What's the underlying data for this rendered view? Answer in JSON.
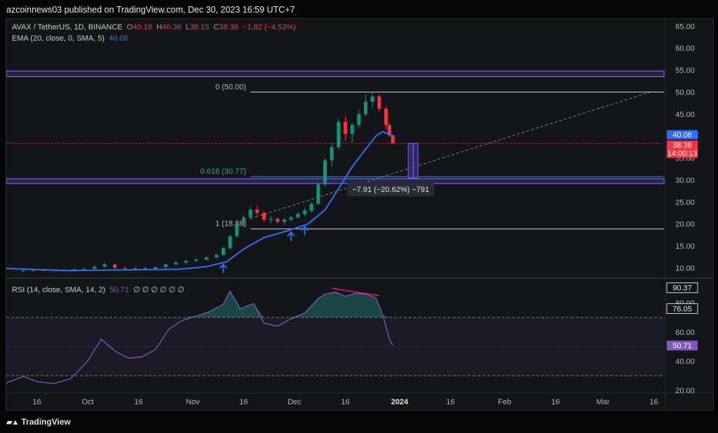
{
  "publisher": "azcoinnews03 published on TradingView.com, Dec 30, 2023 16:59 UTC+7",
  "legend": {
    "symbol": "AVAX / TetherUS, 1D, BINANCE",
    "o_label": "O",
    "o": "40.18",
    "h_label": "H",
    "h": "40.36",
    "l_label": "L",
    "l": "38.15",
    "c_label": "C",
    "c": "38.36",
    "change": "−1.82 (−4.53%)",
    "ema_label": "EMA (20, close, 0, SMA, 5)",
    "ema": "40.06",
    "rsi_label": "RSI (14, close, SMA, 14, 2)",
    "rsi": "50.71",
    "rsi_na": "∅ ∅ ∅ ∅ ∅ ∅"
  },
  "brand": "TradingView",
  "colors": {
    "up": "#089981",
    "down": "#f23645",
    "ema": "#2e6ff2",
    "rsi": "#7e57c2",
    "zone": "#7b5cff",
    "fib": "#26a69a"
  },
  "chart_data": {
    "type": "candlestick",
    "symbol": "AVAX / TetherUS",
    "interval": "1D",
    "price_axis": {
      "ticks": [
        "10.00",
        "15.00",
        "20.00",
        "25.00",
        "30.00",
        "35.00",
        "40.00",
        "45.00",
        "50.00",
        "55.00",
        "60.00",
        "65.00"
      ],
      "range": [
        8,
        66
      ]
    },
    "rsi_axis": {
      "ticks": [
        "20.00",
        "40.00",
        "60.00",
        "80.00"
      ],
      "range": [
        20,
        96
      ],
      "bands": [
        30,
        70
      ]
    },
    "x_ticks": [
      "16",
      "Oct",
      "16",
      "Nov",
      "16",
      "Dec",
      "16",
      "2024",
      "16",
      "Feb",
      "16",
      "Mar",
      "16"
    ],
    "x_tick_dates": [
      "2023-09-16",
      "2023-10-01",
      "2023-10-16",
      "2023-11-01",
      "2023-11-16",
      "2023-12-01",
      "2023-12-16",
      "2024-01-01",
      "2024-01-16",
      "2024-02-01",
      "2024-02-16",
      "2024-03-01",
      "2024-03-16"
    ],
    "date_range": [
      "2023-09-07",
      "2024-03-19"
    ],
    "candles_ohlc": [
      [
        "2023-09-12",
        9.3,
        9.6,
        9.1,
        9.4
      ],
      [
        "2023-09-15",
        9.4,
        9.8,
        9.2,
        9.5
      ],
      [
        "2023-09-18",
        9.5,
        9.8,
        9.3,
        9.4
      ],
      [
        "2023-09-21",
        9.4,
        9.7,
        9.2,
        9.5
      ],
      [
        "2023-09-24",
        9.5,
        9.9,
        9.3,
        9.6
      ],
      [
        "2023-09-27",
        9.6,
        10.0,
        9.4,
        9.7
      ],
      [
        "2023-09-30",
        9.7,
        10.1,
        9.5,
        9.8
      ],
      [
        "2023-10-03",
        9.8,
        10.6,
        9.7,
        10.3
      ],
      [
        "2023-10-06",
        10.3,
        11.2,
        10.1,
        10.8
      ],
      [
        "2023-10-09",
        10.8,
        10.9,
        9.9,
        10.0
      ],
      [
        "2023-10-12",
        10.0,
        10.3,
        9.6,
        9.8
      ],
      [
        "2023-10-15",
        9.8,
        10.1,
        9.5,
        9.9
      ],
      [
        "2023-10-18",
        9.9,
        10.2,
        9.6,
        9.8
      ],
      [
        "2023-10-21",
        9.8,
        10.3,
        9.7,
        10.2
      ],
      [
        "2023-10-24",
        10.2,
        11.0,
        10.0,
        10.8
      ],
      [
        "2023-10-27",
        10.8,
        11.5,
        10.6,
        11.2
      ],
      [
        "2023-10-30",
        11.2,
        11.9,
        11.0,
        11.6
      ],
      [
        "2023-11-02",
        11.6,
        12.2,
        11.3,
        11.9
      ],
      [
        "2023-11-05",
        11.9,
        12.6,
        11.7,
        12.4
      ],
      [
        "2023-11-08",
        12.4,
        13.2,
        12.2,
        13.0
      ],
      [
        "2023-11-10",
        13.0,
        14.8,
        12.8,
        14.5
      ],
      [
        "2023-11-12",
        14.5,
        17.5,
        14.2,
        17.2
      ],
      [
        "2023-11-14",
        17.2,
        20.5,
        16.8,
        20.2
      ],
      [
        "2023-11-16",
        20.2,
        22.0,
        19.5,
        21.5
      ],
      [
        "2023-11-18",
        21.5,
        24.0,
        21.0,
        23.3
      ],
      [
        "2023-11-20",
        23.3,
        24.2,
        21.8,
        22.5
      ],
      [
        "2023-11-22",
        22.5,
        23.0,
        20.5,
        21.0
      ],
      [
        "2023-11-24",
        21.0,
        21.8,
        20.2,
        21.2
      ],
      [
        "2023-11-26",
        21.2,
        21.5,
        20.1,
        20.5
      ],
      [
        "2023-11-28",
        20.5,
        21.4,
        19.8,
        21.0
      ],
      [
        "2023-11-30",
        21.0,
        21.8,
        20.6,
        21.5
      ],
      [
        "2023-12-02",
        21.5,
        22.6,
        21.2,
        22.3
      ],
      [
        "2023-12-04",
        22.3,
        23.5,
        21.8,
        23.0
      ],
      [
        "2023-12-06",
        23.0,
        25.0,
        22.6,
        24.6
      ],
      [
        "2023-12-08",
        24.6,
        29.5,
        24.2,
        29.0
      ],
      [
        "2023-12-10",
        29.0,
        35.0,
        28.5,
        34.5
      ],
      [
        "2023-12-12",
        34.5,
        38.5,
        33.0,
        37.5
      ],
      [
        "2023-12-14",
        37.5,
        44.0,
        37.0,
        43.2
      ],
      [
        "2023-12-16",
        43.2,
        44.5,
        39.0,
        40.5
      ],
      [
        "2023-12-18",
        40.5,
        43.0,
        38.5,
        42.5
      ],
      [
        "2023-12-20",
        42.5,
        46.0,
        41.8,
        45.0
      ],
      [
        "2023-12-22",
        45.0,
        49.5,
        44.5,
        47.8
      ],
      [
        "2023-12-24",
        47.8,
        50.0,
        46.5,
        49.0
      ],
      [
        "2023-12-26",
        49.0,
        49.6,
        45.5,
        46.2
      ],
      [
        "2023-12-28",
        46.2,
        46.8,
        41.5,
        42.5
      ],
      [
        "2023-12-29",
        42.5,
        43.0,
        39.8,
        40.2
      ],
      [
        "2023-12-30",
        40.18,
        40.36,
        38.15,
        38.36
      ]
    ],
    "ema20": [
      [
        "2023-09-07",
        9.9
      ],
      [
        "2023-09-25",
        9.4
      ],
      [
        "2023-10-15",
        9.6
      ],
      [
        "2023-10-28",
        9.7
      ],
      [
        "2023-11-05",
        10.3
      ],
      [
        "2023-11-11",
        11.4
      ],
      [
        "2023-11-16",
        14.3
      ],
      [
        "2023-11-22",
        16.9
      ],
      [
        "2023-11-30",
        18.7
      ],
      [
        "2023-12-05",
        20.0
      ],
      [
        "2023-12-10",
        23.2
      ],
      [
        "2023-12-14",
        28.0
      ],
      [
        "2023-12-18",
        33.0
      ],
      [
        "2023-12-22",
        37.0
      ],
      [
        "2023-12-25",
        40.0
      ],
      [
        "2023-12-27",
        41.0
      ],
      [
        "2023-12-30",
        40.06
      ]
    ],
    "rsi": [
      [
        "2023-09-07",
        25.0
      ],
      [
        "2023-09-12",
        29.5
      ],
      [
        "2023-09-16",
        26.0
      ],
      [
        "2023-09-21",
        24.5
      ],
      [
        "2023-09-26",
        28.0
      ],
      [
        "2023-10-01",
        40.0
      ],
      [
        "2023-10-05",
        55.0
      ],
      [
        "2023-10-09",
        47.0
      ],
      [
        "2023-10-13",
        42.0
      ],
      [
        "2023-10-17",
        43.0
      ],
      [
        "2023-10-21",
        48.0
      ],
      [
        "2023-10-25",
        62.0
      ],
      [
        "2023-10-29",
        68.0
      ],
      [
        "2023-11-02",
        71.0
      ],
      [
        "2023-11-06",
        74.0
      ],
      [
        "2023-11-10",
        79.0
      ],
      [
        "2023-11-12",
        88.0
      ],
      [
        "2023-11-15",
        76.0
      ],
      [
        "2023-11-19",
        79.5
      ],
      [
        "2023-11-22",
        66.0
      ],
      [
        "2023-11-26",
        64.0
      ],
      [
        "2023-11-30",
        69.0
      ],
      [
        "2023-12-04",
        73.0
      ],
      [
        "2023-12-08",
        83.0
      ],
      [
        "2023-12-10",
        86.0
      ],
      [
        "2023-12-13",
        87.5
      ],
      [
        "2023-12-16",
        84.5
      ],
      [
        "2023-12-19",
        86.5
      ],
      [
        "2023-12-22",
        86.0
      ],
      [
        "2023-12-25",
        83.5
      ],
      [
        "2023-12-27",
        72.0
      ],
      [
        "2023-12-29",
        55.0
      ],
      [
        "2023-12-30",
        50.71
      ]
    ],
    "price_lines": [
      {
        "label": "0 (50.00)",
        "price": 50.0,
        "from": "2023-11-18"
      },
      {
        "label": "0.618 (30.77)",
        "price": 30.77,
        "from": "2023-11-18"
      },
      {
        "label": "1 (18.88)",
        "price": 18.88,
        "from": "2023-11-18"
      }
    ],
    "zones": [
      {
        "from": 53.5,
        "to": 54.8
      },
      {
        "from": 29.2,
        "to": 30.3
      }
    ],
    "trendline": {
      "from": [
        "2023-11-18",
        21.2
      ],
      "to": [
        "2024-03-15",
        50.0
      ]
    },
    "measure": {
      "date": "2024-01-05",
      "from": 38.36,
      "to": 30.45,
      "label": "−7.91 (−20.62%) −791"
    },
    "signal_arrows": [
      "2023-11-10",
      "2023-11-30",
      "2023-12-04"
    ],
    "divergence": {
      "from": [
        "2023-12-12",
        90.0
      ],
      "to": [
        "2023-12-26",
        85.0
      ]
    },
    "price_badges": [
      {
        "text": "40.06",
        "value": 40.06,
        "color": "#2e6ff2"
      },
      {
        "text": "38.36",
        "value": 38.36,
        "color": "#f23645"
      },
      {
        "text": "14:00:13",
        "value": 38.36,
        "color": "#f23645"
      }
    ],
    "rsi_badges": [
      {
        "text": "90.37",
        "value": 90.37,
        "style": "outline"
      },
      {
        "text": "76.05",
        "value": 76.05,
        "style": "outline"
      },
      {
        "text": "50.71",
        "value": 50.71,
        "style": "fill"
      }
    ]
  }
}
